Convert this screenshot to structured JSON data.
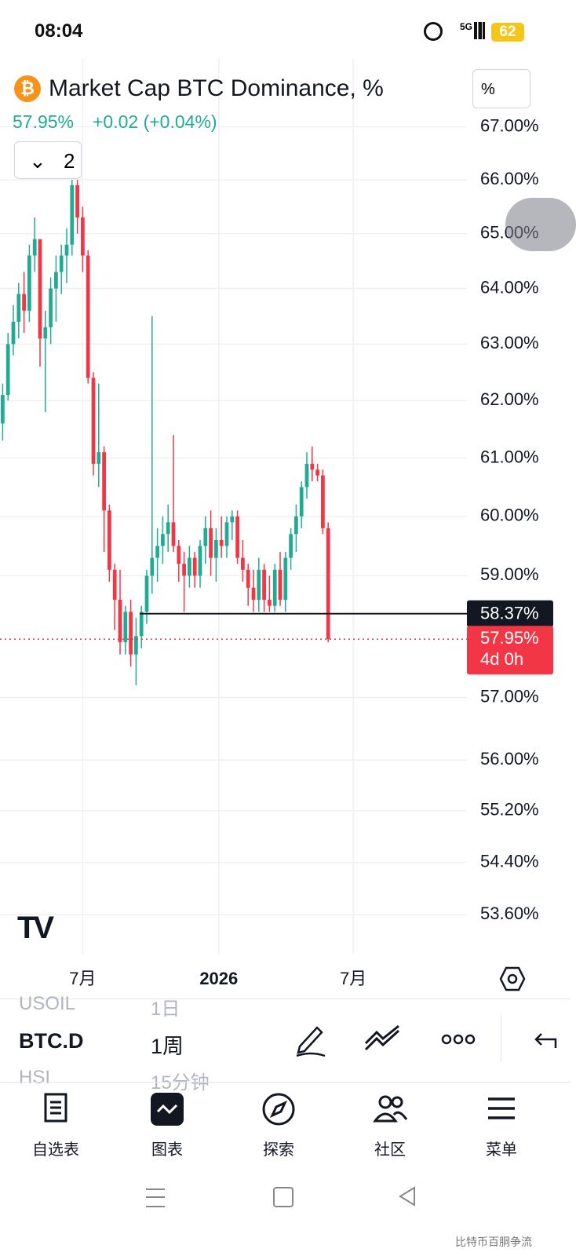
{
  "status_bar": {
    "time": "08:04",
    "network": "5G",
    "battery": "62"
  },
  "header": {
    "title": "Market Cap BTC Dominance, %",
    "price": "57.95%",
    "change": "+0.02 (+0.04%)",
    "indicator_count": "2",
    "scale_button": "%"
  },
  "chart_data": {
    "type": "candlestick",
    "log_scale": true,
    "grid": true,
    "up_color": "#22ab94",
    "down_color": "#f23645",
    "open": [
      61.6,
      62.1,
      63.0,
      63.4,
      63.9,
      63.6,
      64.6,
      64.9,
      63.1,
      63.3,
      64.0,
      64.3,
      64.6,
      64.8,
      65.9,
      65.3,
      64.6,
      62.4,
      60.9,
      61.1,
      60.1,
      59.1,
      58.6,
      57.9,
      58.4,
      57.7,
      58.0,
      58.4,
      59.0,
      59.3,
      59.5,
      59.7,
      59.9,
      59.5,
      59.2,
      59.0,
      59.3,
      59.0,
      59.5,
      59.8,
      59.3,
      59.6,
      59.5,
      59.9,
      60.0,
      59.3,
      59.1,
      58.8,
      58.6,
      59.1,
      58.6,
      58.5,
      59.1,
      58.6,
      59.3,
      59.7,
      60.0,
      60.5,
      60.9,
      60.8,
      60.7,
      59.8
    ],
    "high": [
      62.3,
      63.2,
      63.7,
      64.1,
      64.3,
      64.8,
      65.3,
      64.9,
      63.6,
      64.2,
      64.6,
      64.8,
      65.1,
      66.0,
      66.0,
      65.5,
      64.7,
      62.5,
      62.3,
      61.2,
      60.2,
      59.2,
      59.1,
      58.5,
      58.6,
      58.3,
      58.5,
      59.1,
      63.5,
      59.8,
      60.0,
      60.2,
      61.4,
      59.6,
      59.4,
      59.5,
      59.4,
      59.6,
      60.0,
      60.1,
      59.8,
      60.0,
      60.0,
      60.1,
      60.1,
      59.6,
      59.2,
      59.1,
      59.3,
      59.2,
      59.0,
      59.2,
      59.4,
      59.4,
      59.8,
      60.2,
      60.6,
      61.1,
      61.2,
      60.9,
      60.8,
      59.9
    ],
    "low": [
      61.3,
      62.0,
      62.8,
      63.1,
      63.2,
      63.4,
      64.3,
      62.6,
      61.8,
      63.0,
      63.4,
      63.9,
      64.1,
      64.6,
      65.0,
      64.3,
      62.3,
      60.7,
      60.5,
      59.4,
      58.9,
      58.1,
      57.7,
      57.7,
      57.5,
      57.2,
      57.8,
      58.2,
      58.7,
      58.9,
      59.2,
      59.4,
      59.4,
      58.9,
      58.4,
      58.8,
      58.8,
      58.8,
      59.2,
      59.0,
      58.9,
      59.3,
      59.3,
      59.6,
      59.2,
      58.9,
      58.5,
      58.4,
      58.4,
      58.4,
      58.4,
      58.4,
      58.5,
      58.4,
      59.1,
      59.4,
      59.8,
      60.3,
      60.6,
      60.6,
      59.7,
      57.9
    ],
    "close": [
      62.1,
      63.0,
      63.4,
      63.9,
      63.6,
      64.6,
      64.9,
      63.1,
      63.3,
      64.0,
      64.3,
      64.6,
      64.8,
      65.9,
      65.3,
      64.6,
      62.4,
      60.9,
      61.1,
      60.1,
      59.1,
      58.6,
      57.9,
      58.4,
      57.7,
      58.0,
      58.4,
      59.0,
      59.3,
      59.5,
      59.7,
      59.9,
      59.5,
      59.2,
      59.0,
      59.3,
      59.0,
      59.5,
      59.8,
      59.3,
      59.6,
      59.5,
      59.9,
      60.0,
      59.3,
      59.1,
      58.8,
      58.6,
      59.1,
      58.6,
      58.5,
      59.1,
      58.6,
      59.3,
      59.7,
      60.0,
      60.5,
      60.9,
      60.8,
      60.7,
      59.8,
      57.95
    ],
    "xlim": [
      -0.5,
      87
    ],
    "xticks": [
      {
        "value": 15,
        "label": "7月"
      },
      {
        "value": 40.5,
        "label": "2026"
      },
      {
        "value": 65.7,
        "label": "7月"
      }
    ],
    "ylim": [
      53.01,
      68.3
    ],
    "yticks": [
      {
        "value": 67,
        "label": "67.00%"
      },
      {
        "value": 66,
        "label": "66.00%"
      },
      {
        "value": 65,
        "label": "65.00%"
      },
      {
        "value": 64,
        "label": "64.00%"
      },
      {
        "value": 63,
        "label": "63.00%"
      },
      {
        "value": 62,
        "label": "62.00%"
      },
      {
        "value": 61,
        "label": "61.00%"
      },
      {
        "value": 60,
        "label": "60.00%"
      },
      {
        "value": 59,
        "label": "59.00%"
      },
      {
        "value": 57,
        "label": "57.00%"
      },
      {
        "value": 56,
        "label": "56.00%"
      },
      {
        "value": 55.2,
        "label": "55.20%"
      },
      {
        "value": 54.4,
        "label": "54.40%"
      },
      {
        "value": 53.6,
        "label": "53.60%"
      }
    ],
    "hline": {
      "value": 58.37,
      "label": "58.37%"
    },
    "price_label": {
      "value": 57.95,
      "label": "57.95%",
      "countdown": "4d 0h"
    }
  },
  "symbol_list": [
    [
      "USOIL",
      "1日"
    ],
    [
      "BTC.D",
      "1周"
    ],
    [
      "HSI",
      "15分钟"
    ]
  ],
  "nav": [
    "自选表",
    "图表",
    "探索",
    "社区",
    "菜单"
  ],
  "watermark": "比特币百胴争流"
}
